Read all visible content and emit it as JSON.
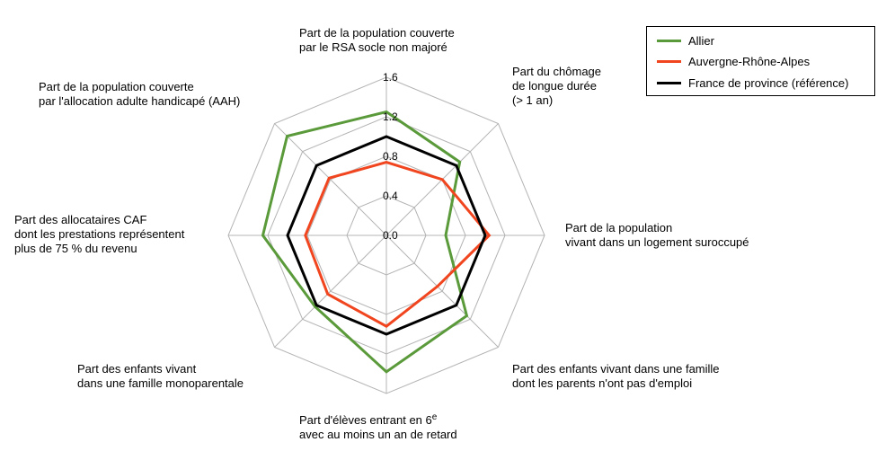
{
  "chart_data": {
    "type": "radar",
    "axes": [
      [
        "Part de la population couverte",
        "par le RSA socle non majoré"
      ],
      [
        "Part du chômage",
        "de longue durée",
        "(> 1 an)"
      ],
      [
        "Part de la population",
        "vivant dans un logement suroccupé"
      ],
      [
        "Part des enfants vivant dans une famille",
        "dont les parents n'ont pas d'emploi"
      ],
      [
        "Part d'élèves entrant en 6^e",
        "avec au moins un an de retard"
      ],
      [
        "Part des enfants vivant",
        "dans une famille monoparentale"
      ],
      [
        "Part des allocataires CAF",
        "dont les prestations représentent",
        "plus de 75 % du revenu"
      ],
      [
        "Part de la population couverte",
        "par l'allocation adulte handicapé (AAH)"
      ]
    ],
    "ticks": [
      "0.0",
      "0.4",
      "0.8",
      "1.2",
      "1.6"
    ],
    "rlim": [
      0,
      1.6
    ],
    "grid": true,
    "legend_position": "top-right",
    "series": [
      {
        "name": "Allier",
        "color": "#5a9a3a",
        "values": [
          1.25,
          1.05,
          0.6,
          1.15,
          1.38,
          1.02,
          1.25,
          1.42
        ]
      },
      {
        "name": "Auvergne-Rhône-Alpes",
        "color": "#f0451e",
        "values": [
          0.74,
          0.8,
          1.04,
          0.73,
          0.92,
          0.84,
          0.82,
          0.82
        ]
      },
      {
        "name": "France de province (référence)",
        "color": "#000000",
        "values": [
          1.0,
          1.0,
          1.0,
          1.0,
          1.0,
          1.0,
          1.0,
          1.0
        ]
      }
    ]
  }
}
